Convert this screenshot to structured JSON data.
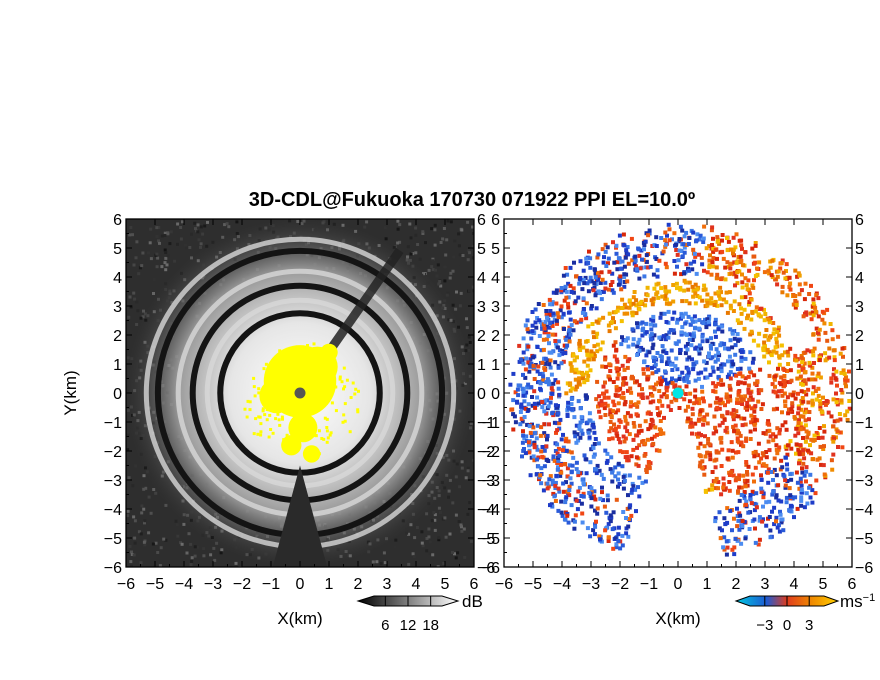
{
  "title": "3D-CDL@Fukuoka 170730 071922 PPI EL=10.0º",
  "chart_data": [
    {
      "type": "heatmap",
      "panel": "left",
      "quantity": "backscatter intensity",
      "xlabel": "X(km)",
      "ylabel": "Y(km)",
      "xlim": [
        -6,
        6
      ],
      "ylim": [
        -6,
        6
      ],
      "xticks": [
        -6,
        -5,
        -4,
        -3,
        -2,
        -1,
        0,
        1,
        2,
        3,
        4,
        5,
        6
      ],
      "yticks": [
        -6,
        -5,
        -4,
        -3,
        -2,
        -1,
        0,
        1,
        2,
        3,
        4,
        5,
        6
      ],
      "colorbar": {
        "unit": "dB",
        "ticks": [
          6,
          12,
          18
        ],
        "range": [
          3,
          21
        ],
        "colormap": "grayscale"
      },
      "features": {
        "center": [
          0,
          0
        ],
        "bright_rings_km": [
          3.2,
          4.2,
          5.3
        ],
        "dark_rings_km": [
          2.75,
          3.7,
          4.9
        ],
        "saturated_region_color": "#ffff00",
        "blocked_sector_deg": [
          -105,
          -75
        ],
        "shadow_beam_deg": 55
      }
    },
    {
      "type": "heatmap",
      "panel": "right",
      "quantity": "Doppler velocity",
      "xlabel": "X(km)",
      "xlim": [
        -6,
        6
      ],
      "ylim": [
        -6,
        6
      ],
      "xticks": [
        -6,
        -5,
        -4,
        -3,
        -2,
        -1,
        0,
        1,
        2,
        3,
        4,
        5,
        6
      ],
      "yticks": [
        -6,
        -5,
        -4,
        -3,
        -2,
        -1,
        0,
        1,
        2,
        3,
        4,
        5,
        6
      ],
      "colorbar": {
        "unit": "ms",
        "unit_exponent": "−1",
        "ticks": [
          "−3",
          "0",
          "3"
        ],
        "range": [
          -5,
          5
        ],
        "colormap": "blue-red"
      },
      "features": {
        "center": [
          0,
          0
        ],
        "center_marker_color": "#00e5e5",
        "rings": [
          {
            "inner_km": 0,
            "outer_km": 3.0,
            "dominant": "red-orange",
            "approaching_sector_deg": [
              20,
              140
            ]
          },
          {
            "inner_km": 3.0,
            "outer_km": 4.0,
            "dominant": "orange",
            "approaching_sector_deg": [
              180,
              285
            ]
          },
          {
            "inner_km": 4.0,
            "outer_km": 5.8,
            "dominant": "blue",
            "receding_sector_deg": [
              -30,
              80
            ]
          }
        ],
        "no_data_sector_deg": [
          -110,
          -75
        ]
      }
    }
  ]
}
